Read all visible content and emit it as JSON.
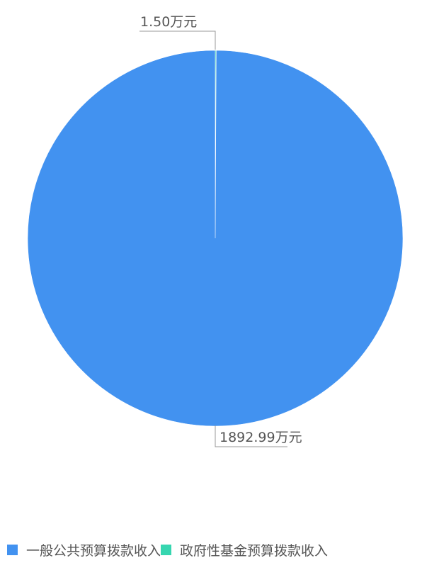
{
  "chart_data": {
    "type": "pie",
    "categories": [
      "一般公共预算拨款收入",
      "政府性基金预算拨款收入"
    ],
    "values": [
      1892.99,
      1.5
    ],
    "unit": "万元",
    "data_labels": [
      "1892.99万元",
      "1.50万元"
    ],
    "colors": [
      "#4292f0",
      "#36d6b0"
    ],
    "legend_position": "bottom-left"
  }
}
